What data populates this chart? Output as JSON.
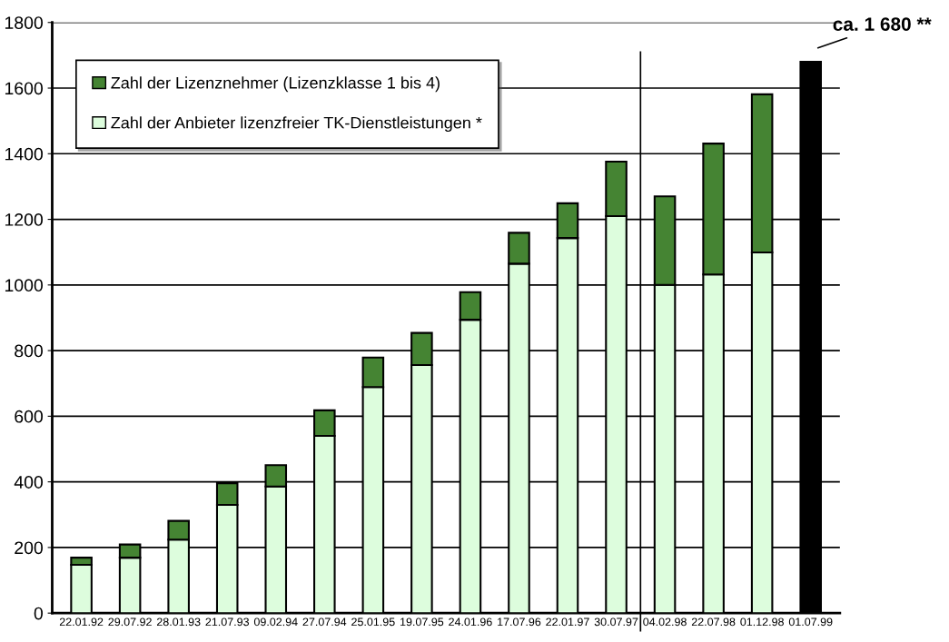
{
  "chart_data": {
    "type": "bar",
    "stacked": true,
    "categories": [
      "22.01.92",
      "29.07.92",
      "28.01.93",
      "21.07.93",
      "09.02.94",
      "27.07.94",
      "25.01.95",
      "19.07.95",
      "24.01.96",
      "17.07.96",
      "22.01.97",
      "30.07.97",
      "04.02.98",
      "22.07.98",
      "01.12.98",
      "01.07.99"
    ],
    "series": [
      {
        "name": "Zahl der Anbieter lizenzfreier TK-Dienstleistungen *",
        "color": "#ddfddd",
        "values": [
          147,
          169,
          224,
          330,
          386,
          540,
          689,
          756,
          894,
          1065,
          1143,
          1210,
          1000,
          1032,
          1099,
          null
        ]
      },
      {
        "name": "Zahl der Lizenznehmer (Lizenzklasse 1 bis 4)",
        "color": "#458433",
        "values": [
          22,
          40,
          57,
          66,
          65,
          78,
          90,
          98,
          84,
          94,
          106,
          166,
          270,
          399,
          482,
          null
        ]
      },
      {
        "color": "#000000",
        "values": [
          null,
          null,
          null,
          null,
          null,
          null,
          null,
          null,
          null,
          null,
          null,
          null,
          null,
          null,
          null,
          1680
        ]
      }
    ],
    "ylim": [
      0,
      1800
    ],
    "yticks": [
      0,
      200,
      400,
      600,
      800,
      1000,
      1200,
      1400,
      1600,
      1800
    ],
    "grid": "y",
    "legend": "top left",
    "annotations": [
      {
        "text": "ca. 1 680 **",
        "x": "01.07.99",
        "y": 1680
      }
    ]
  }
}
